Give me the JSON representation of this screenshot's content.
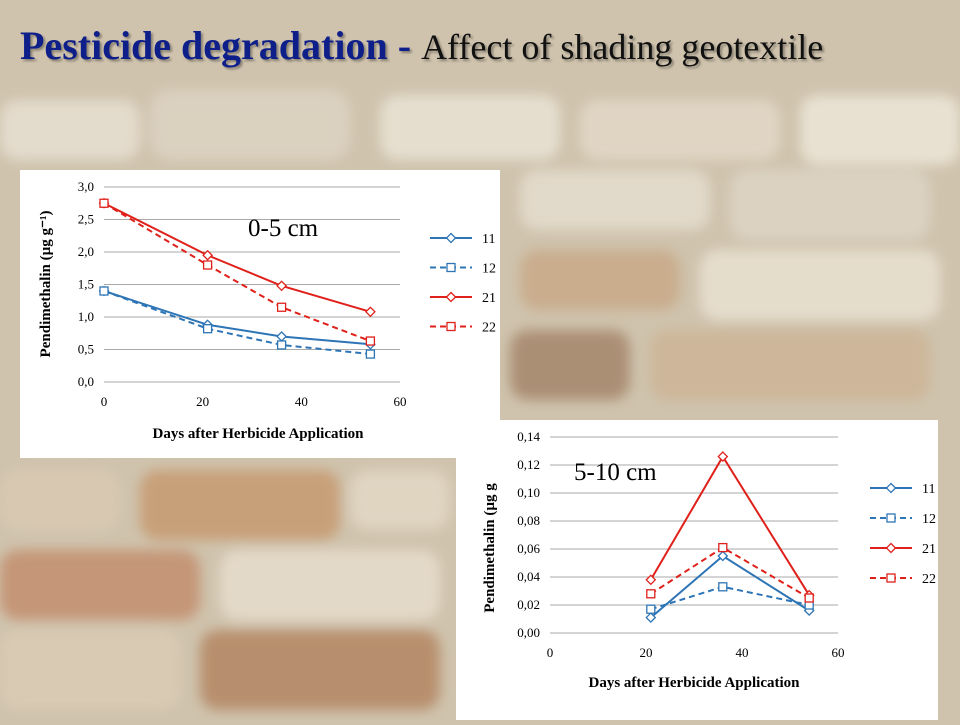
{
  "title": {
    "main": "Pesticide degradation - ",
    "sub": "Affect of shading geotextile"
  },
  "colors": {
    "blue": "#2e75b6",
    "red": "#e0201a",
    "title_blue": "#0f1f8a"
  },
  "chart_data": [
    {
      "type": "line",
      "depth_label": "0-5 cm",
      "xlabel": "Days after Herbicide Application",
      "ylabel": "Pendimethalin (µg g⁻¹)",
      "xlim": [
        0,
        60
      ],
      "ylim": [
        0,
        3.0
      ],
      "xticks": [
        "0",
        "20",
        "40",
        "60"
      ],
      "yticks": [
        "0,0",
        "0,5",
        "1,0",
        "1,5",
        "2,0",
        "2,5",
        "3,0"
      ],
      "legend_position": "right",
      "series": [
        {
          "name": "11",
          "color": "#2e75b6",
          "dashed": false,
          "marker": "diamond",
          "x": [
            0,
            21,
            36,
            54
          ],
          "y": [
            1.4,
            0.88,
            0.7,
            0.58
          ]
        },
        {
          "name": "12",
          "color": "#2e75b6",
          "dashed": true,
          "marker": "square",
          "x": [
            0,
            21,
            36,
            54
          ],
          "y": [
            1.4,
            0.82,
            0.57,
            0.43
          ]
        },
        {
          "name": "21",
          "color": "#e0201a",
          "dashed": false,
          "marker": "diamond",
          "x": [
            0,
            21,
            36,
            54
          ],
          "y": [
            2.75,
            1.95,
            1.48,
            1.08
          ]
        },
        {
          "name": "22",
          "color": "#e0201a",
          "dashed": true,
          "marker": "square",
          "x": [
            0,
            21,
            36,
            54
          ],
          "y": [
            2.75,
            1.8,
            1.15,
            0.63
          ]
        }
      ]
    },
    {
      "type": "line",
      "depth_label": "5-10 cm",
      "xlabel": "Days after Herbicide Application",
      "ylabel": "Pendimethalin (µg g",
      "xlim": [
        0,
        60
      ],
      "ylim": [
        0,
        0.14
      ],
      "xticks": [
        "0",
        "20",
        "40",
        "60"
      ],
      "yticks": [
        "0,00",
        "0,02",
        "0,04",
        "0,06",
        "0,08",
        "0,10",
        "0,12",
        "0,14"
      ],
      "legend_position": "right",
      "series": [
        {
          "name": "11",
          "color": "#2e75b6",
          "dashed": false,
          "marker": "diamond",
          "x": [
            21,
            36,
            54
          ],
          "y": [
            0.011,
            0.055,
            0.016
          ]
        },
        {
          "name": "12",
          "color": "#2e75b6",
          "dashed": true,
          "marker": "square",
          "x": [
            21,
            36,
            54
          ],
          "y": [
            0.017,
            0.033,
            0.02
          ]
        },
        {
          "name": "21",
          "color": "#e0201a",
          "dashed": false,
          "marker": "diamond",
          "x": [
            21,
            36,
            54
          ],
          "y": [
            0.038,
            0.126,
            0.027
          ]
        },
        {
          "name": "22",
          "color": "#e0201a",
          "dashed": true,
          "marker": "square",
          "x": [
            21,
            36,
            54
          ],
          "y": [
            0.028,
            0.061,
            0.025
          ]
        }
      ]
    }
  ]
}
